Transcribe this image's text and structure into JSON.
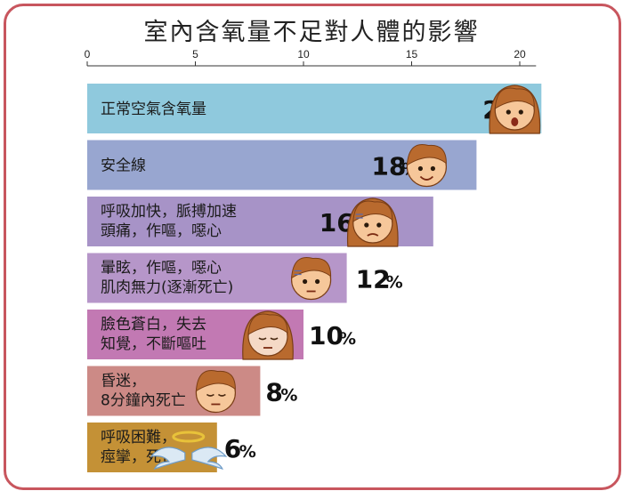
{
  "chart_data": {
    "type": "bar",
    "orientation": "horizontal",
    "title": "室內含氧量不足對人體的影響",
    "categories": [
      [
        "正常空氣含氧量"
      ],
      [
        "安全線"
      ],
      [
        "呼吸加快，脈搏加速",
        "頭痛，作嘔，噁心"
      ],
      [
        "暈眩，作嘔，噁心",
        "肌肉無力(逐漸死亡)"
      ],
      [
        "臉色蒼白，失去",
        "知覺，不斷嘔吐"
      ],
      [
        "昏迷，",
        "8分鐘內死亡"
      ],
      [
        "呼吸困難，",
        "痙攣，死亡"
      ]
    ],
    "values": [
      21,
      18,
      16,
      12,
      10,
      8,
      6
    ],
    "value_suffix": "%",
    "xticks": [
      0,
      5,
      10,
      15,
      20
    ],
    "xlim": [
      0,
      21
    ],
    "bar_colors": [
      "#8fc9dd",
      "#98a6d0",
      "#a793c7",
      "#b696c9",
      "#c279b3",
      "#cc8a86",
      "#c49136"
    ],
    "icons": [
      "surprised-woman-face-icon",
      "smiling-man-face-icon",
      "sick-woman-face-icon",
      "dizzy-man-face-icon",
      "fainting-woman-face-icon",
      "unconscious-man-face-icon",
      "angel-halo-wings-icon"
    ]
  }
}
